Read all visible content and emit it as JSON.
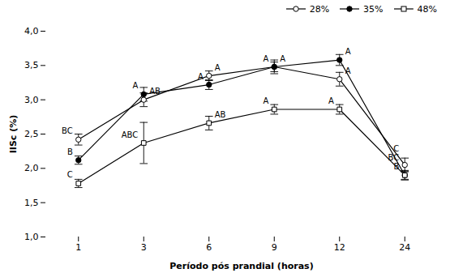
{
  "chart_data": {
    "type": "line",
    "categories": [
      "1",
      "3",
      "6",
      "9",
      "12",
      "24"
    ],
    "series": [
      {
        "name": "28%",
        "color": "black",
        "marker": "circle-open",
        "line_style": "solid",
        "values": [
          2.42,
          3.0,
          3.35,
          3.48,
          3.3,
          2.05
        ],
        "yerr": [
          0.08,
          0.1,
          0.07,
          0.07,
          0.1,
          0.1
        ],
        "annotations": [
          {
            "x": "1",
            "y": 2.42,
            "text": "BC",
            "side": "left"
          },
          {
            "x": "3",
            "y": 3.0,
            "text": "AB",
            "side": "right"
          },
          {
            "x": "6",
            "y": 3.35,
            "text": "A",
            "side": "right"
          },
          {
            "x": "9",
            "y": 3.48,
            "text": "A",
            "side": "right"
          },
          {
            "x": "12",
            "y": 3.3,
            "text": "A",
            "side": "right"
          },
          {
            "x": "24",
            "y": 2.05,
            "text": "C",
            "side": "left"
          }
        ]
      },
      {
        "name": "35%",
        "color": "black",
        "marker": "circle",
        "line_style": "solid",
        "values": [
          2.12,
          3.08,
          3.22,
          3.48,
          3.58,
          1.9
        ],
        "yerr": [
          0.06,
          0.1,
          0.07,
          0.1,
          0.08,
          0.07
        ],
        "annotations": [
          {
            "x": "1",
            "y": 2.12,
            "text": "B",
            "side": "left"
          },
          {
            "x": "3",
            "y": 3.08,
            "text": "A",
            "side": "left"
          },
          {
            "x": "6",
            "y": 3.22,
            "text": "A",
            "side": "left"
          },
          {
            "x": "9",
            "y": 3.48,
            "text": "A",
            "side": "left"
          },
          {
            "x": "12",
            "y": 3.58,
            "text": "A",
            "side": "right"
          },
          {
            "x": "24",
            "y": 1.9,
            "text": "B",
            "side": "left"
          }
        ]
      },
      {
        "name": "48%",
        "color": "black",
        "marker": "square-open",
        "line_style": "solid",
        "values": [
          1.78,
          2.37,
          2.66,
          2.86,
          2.86,
          1.9
        ],
        "yerr": [
          0.06,
          0.3,
          0.1,
          0.07,
          0.07,
          0.06
        ],
        "annotations": [
          {
            "x": "1",
            "y": 1.78,
            "text": "C",
            "side": "left"
          },
          {
            "x": "3",
            "y": 2.37,
            "text": "ABC",
            "side": "left"
          },
          {
            "x": "6",
            "y": 2.66,
            "text": "AB",
            "side": "right"
          },
          {
            "x": "9",
            "y": 2.86,
            "text": "A",
            "side": "left"
          },
          {
            "x": "12",
            "y": 2.86,
            "text": "A",
            "side": "left"
          },
          {
            "x": "24",
            "y": 1.9,
            "text": "BC",
            "side": "left"
          }
        ]
      }
    ],
    "xlabel": "Período pós prandial (horas)",
    "ylabel": "IISc (%)",
    "ylim": [
      1.0,
      4.0
    ],
    "yticks": [
      {
        "value": 1.0,
        "label": "1,0"
      },
      {
        "value": 1.5,
        "label": "1,5"
      },
      {
        "value": 2.0,
        "label": "2,0"
      },
      {
        "value": 2.5,
        "label": "2,5"
      },
      {
        "value": 3.0,
        "label": "3,0"
      },
      {
        "value": 3.5,
        "label": "3,5"
      },
      {
        "value": 4.0,
        "label": "4,0"
      }
    ],
    "grid": false,
    "legend": "upper right"
  }
}
